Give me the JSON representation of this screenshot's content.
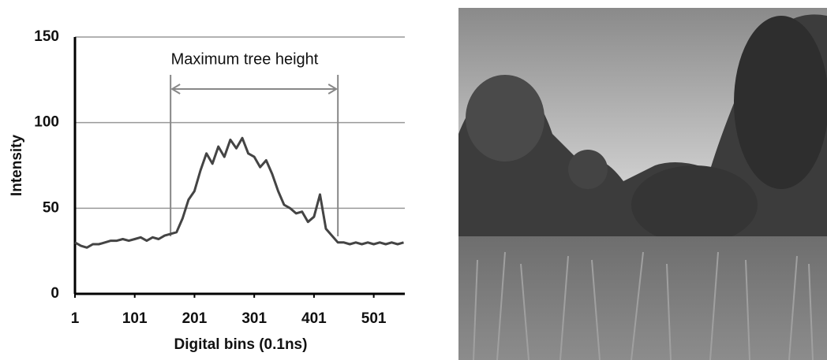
{
  "chart_data": {
    "type": "line",
    "xlabel": "Digital bins (0.1ns)",
    "ylabel": "Intensity",
    "annotation": {
      "text": "Maximum tree height",
      "x": [
        161,
        441
      ]
    },
    "x": [
      1,
      11,
      21,
      31,
      41,
      51,
      61,
      71,
      81,
      91,
      101,
      111,
      121,
      131,
      141,
      151,
      161,
      171,
      181,
      191,
      201,
      211,
      221,
      231,
      241,
      251,
      261,
      271,
      281,
      291,
      301,
      311,
      321,
      331,
      341,
      351,
      361,
      371,
      381,
      391,
      401,
      411,
      421,
      431,
      441,
      451,
      461,
      471,
      481,
      491,
      501,
      511,
      521,
      531,
      541,
      551
    ],
    "values": [
      30,
      28,
      27,
      29,
      29,
      30,
      31,
      31,
      32,
      31,
      32,
      33,
      31,
      33,
      32,
      34,
      35,
      36,
      44,
      55,
      60,
      72,
      82,
      76,
      86,
      80,
      90,
      85,
      91,
      82,
      80,
      74,
      78,
      70,
      60,
      52,
      50,
      47,
      48,
      42,
      45,
      58,
      38,
      34,
      30,
      30,
      29,
      30,
      29,
      30,
      29,
      30,
      29,
      30,
      29,
      30
    ],
    "color": "#444444",
    "xlim": [
      1,
      553
    ],
    "xticks": [
      1,
      101,
      201,
      301,
      401,
      501
    ],
    "ylim": [
      0,
      150
    ],
    "yticks": [
      0,
      50,
      100,
      150
    ],
    "grid": true
  }
}
